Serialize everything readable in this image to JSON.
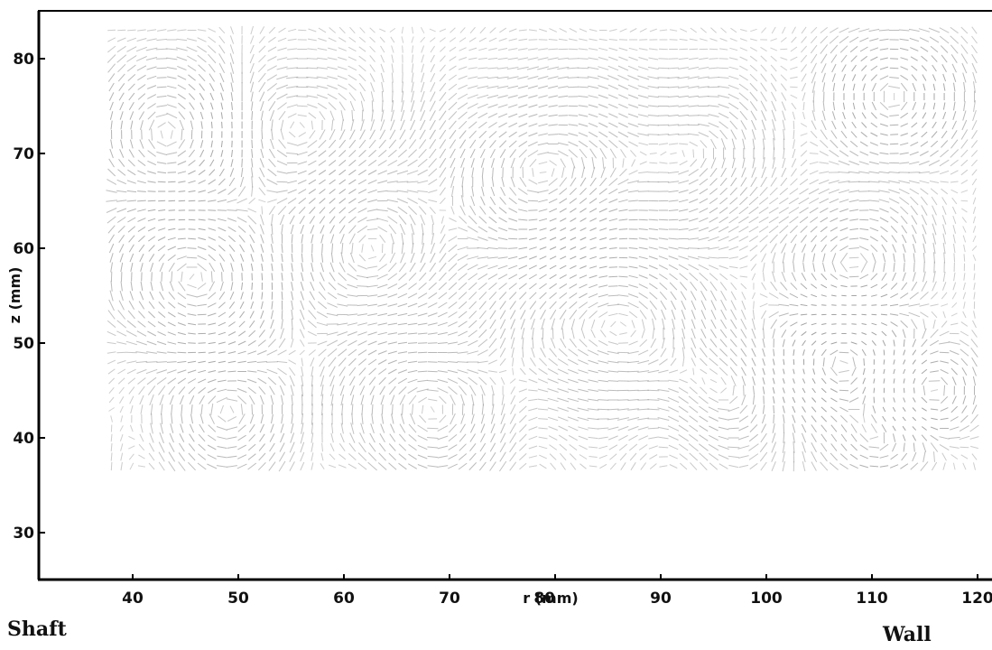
{
  "chart_data": {
    "type": "vector-field",
    "xlabel": "r (mm)",
    "ylabel": "z (mm)",
    "xlim": [
      30,
      123
    ],
    "ylim": [
      25,
      85
    ],
    "xticks": [
      40,
      50,
      60,
      70,
      80,
      90,
      100,
      110,
      120
    ],
    "yticks": [
      30,
      40,
      50,
      60,
      70,
      80
    ],
    "field_extent": {
      "r": [
        38,
        120.5
      ],
      "z": [
        37,
        83
      ]
    },
    "grid": false,
    "arrow_color": "#9a9a9a",
    "annotations": {
      "left": "Shaft",
      "right": "Wall"
    }
  }
}
